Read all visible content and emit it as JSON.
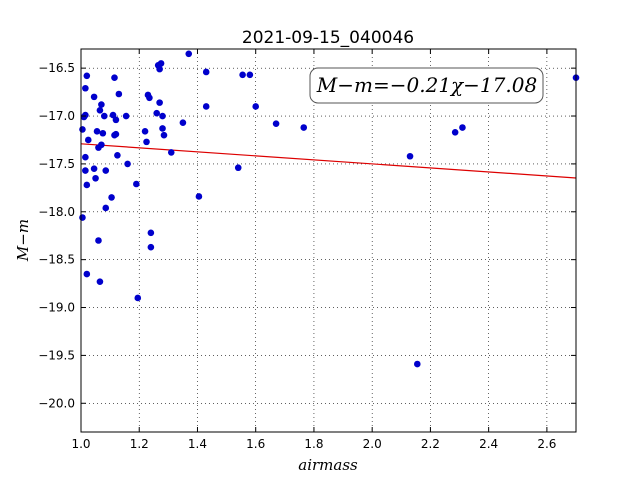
{
  "chart_data": {
    "type": "scatter",
    "title": "2021-09-15_040046",
    "xlabel": "airmass",
    "ylabel": "M−m",
    "xlim": [
      1.0,
      2.7
    ],
    "ylim": [
      -20.3,
      -16.3
    ],
    "y_inverted": true,
    "grid": true,
    "xticks": [
      1.0,
      1.2,
      1.4,
      1.6,
      1.8,
      2.0,
      2.2,
      2.4,
      2.6
    ],
    "xtick_labels": [
      "1.0",
      "1.2",
      "1.4",
      "1.6",
      "1.8",
      "2.0",
      "2.2",
      "2.4",
      "2.6"
    ],
    "yticks": [
      -16.5,
      -17.0,
      -17.5,
      -18.0,
      -18.5,
      -19.0,
      -19.5,
      -20.0
    ],
    "ytick_labels": [
      "−16.5",
      "−17.0",
      "−17.5",
      "−18.0",
      "−18.5",
      "−19.0",
      "−19.5",
      "−20.0"
    ],
    "annotation": "M−m=−0.21χ−17.08",
    "points_color": "#0000cc",
    "fit_color": "#dd0000",
    "fit": {
      "slope": -0.21,
      "intercept": -17.08
    },
    "points": {
      "x": [
        1.005,
        1.005,
        1.01,
        1.015,
        1.015,
        1.015,
        1.015,
        1.02,
        1.02,
        1.02,
        1.025,
        1.045,
        1.045,
        1.05,
        1.055,
        1.06,
        1.06,
        1.065,
        1.065,
        1.07,
        1.07,
        1.075,
        1.08,
        1.085,
        1.085,
        1.105,
        1.11,
        1.115,
        1.115,
        1.12,
        1.12,
        1.125,
        1.13,
        1.155,
        1.16,
        1.19,
        1.195,
        1.22,
        1.225,
        1.23,
        1.235,
        1.24,
        1.24,
        1.26,
        1.265,
        1.27,
        1.27,
        1.275,
        1.28,
        1.28,
        1.285,
        1.31,
        1.35,
        1.37,
        1.405,
        1.43,
        1.43,
        1.54,
        1.555,
        1.58,
        1.6,
        1.67,
        1.765,
        2.13,
        2.155,
        2.285,
        2.31,
        2.7
      ],
      "y": [
        -17.14,
        -18.06,
        -17.01,
        -16.71,
        -16.99,
        -17.43,
        -17.57,
        -17.72,
        -18.65,
        -16.58,
        -17.25,
        -17.55,
        -16.8,
        -17.65,
        -17.16,
        -17.33,
        -18.3,
        -18.73,
        -16.94,
        -17.3,
        -16.88,
        -17.18,
        -17.0,
        -17.96,
        -17.57,
        -17.85,
        -16.99,
        -17.2,
        -16.6,
        -17.04,
        -17.19,
        -17.41,
        -16.77,
        -17.0,
        -17.5,
        -17.71,
        -18.9,
        -17.16,
        -17.27,
        -16.78,
        -16.81,
        -18.22,
        -18.37,
        -16.97,
        -16.47,
        -16.51,
        -16.86,
        -16.45,
        -17.0,
        -17.13,
        -17.2,
        -17.38,
        -17.07,
        -16.35,
        -17.84,
        -16.54,
        -16.9,
        -17.54,
        -16.57,
        -16.57,
        -16.9,
        -17.08,
        -17.12,
        -17.42,
        -19.59,
        -17.17,
        -17.12,
        -16.6
      ]
    }
  }
}
